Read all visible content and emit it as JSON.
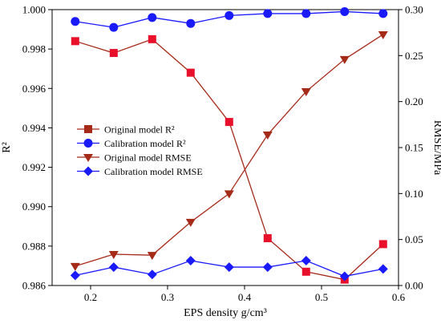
{
  "chart_data": {
    "type": "line",
    "xlabel": "EPS density g/cm³",
    "ylabel_left": "R²",
    "ylabel_right": "RMSE/MPa",
    "x": [
      0.18,
      0.23,
      0.28,
      0.33,
      0.38,
      0.43,
      0.48,
      0.53,
      0.58
    ],
    "xlim": [
      0.15,
      0.6
    ],
    "xticks": [
      "0.2",
      "0.3",
      "0.4",
      "0.5",
      "0.6"
    ],
    "ylim_left": [
      0.986,
      1.0
    ],
    "yticks_left": [
      "0.986",
      "0.988",
      "0.990",
      "0.992",
      "0.994",
      "0.996",
      "0.998",
      "1.000"
    ],
    "ylim_right": [
      0,
      0.3
    ],
    "yticks_right": [
      "0.00",
      "0.05",
      "0.10",
      "0.15",
      "0.20",
      "0.25",
      "0.30"
    ],
    "grid": false,
    "legend_position": "center-left",
    "series": [
      {
        "name": "Original model R²",
        "axis": "left",
        "marker": "square",
        "color": "#a52a18",
        "markerColor": "#e8102a",
        "values": [
          0.9984,
          0.9978,
          0.9985,
          0.9968,
          0.9943,
          0.9884,
          0.9867,
          0.9863,
          0.9881
        ]
      },
      {
        "name": "Calibration model R²",
        "axis": "left",
        "marker": "circle",
        "color": "#1a1aff",
        "markerColor": "#1a1aff",
        "values": [
          0.9994,
          0.9991,
          0.9996,
          0.9993,
          0.9997,
          0.9998,
          0.9998,
          0.9999,
          0.9998
        ]
      },
      {
        "name": "Original model RMSE",
        "axis": "right",
        "marker": "triangle-down",
        "color": "#a52a18",
        "markerColor": "#a52a18",
        "values": [
          0.021,
          0.034,
          0.033,
          0.069,
          0.1,
          0.164,
          0.211,
          0.246,
          0.273
        ]
      },
      {
        "name": "Calibration model RMSE",
        "axis": "right",
        "marker": "diamond",
        "color": "#1a1aff",
        "markerColor": "#1a1aff",
        "values": [
          0.011,
          0.02,
          0.012,
          0.027,
          0.02,
          0.02,
          0.027,
          0.01,
          0.018
        ]
      }
    ]
  }
}
